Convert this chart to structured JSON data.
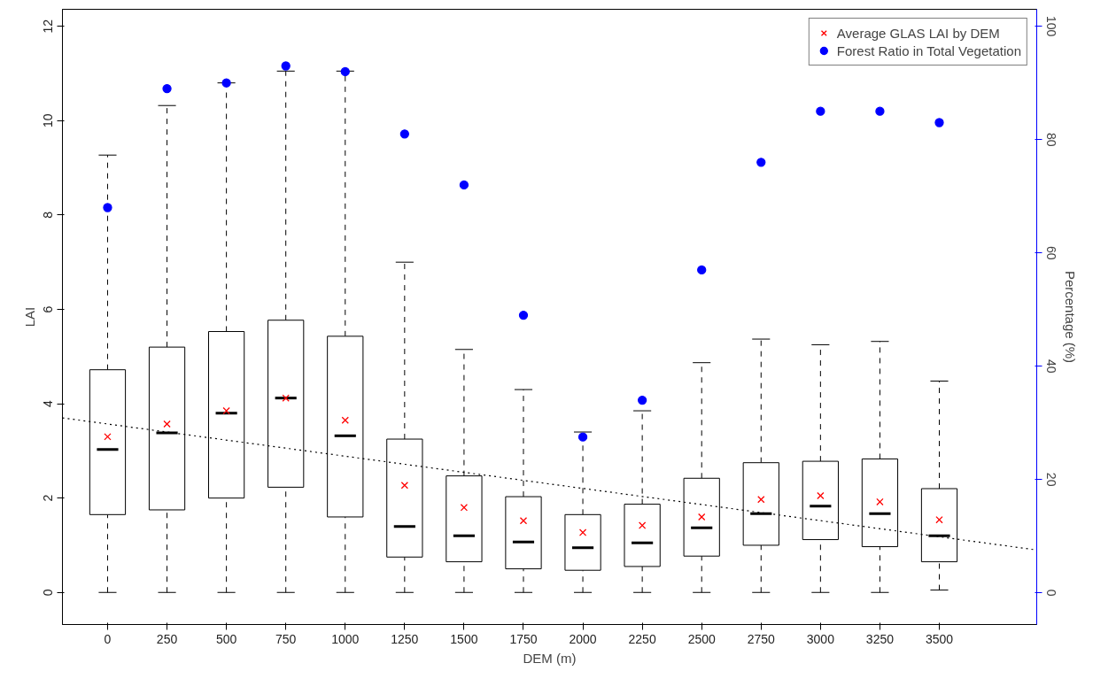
{
  "chart_data": {
    "type": "box",
    "xlabel": "DEM (m)",
    "ylabel": "LAI",
    "y2label": "Percentage (%)",
    "x": [
      0,
      250,
      500,
      750,
      1000,
      1250,
      1500,
      1750,
      2000,
      2250,
      2500,
      2750,
      3000,
      3250,
      3500
    ],
    "xlim": [
      -190,
      3910
    ],
    "xticks": [
      0,
      250,
      500,
      750,
      1000,
      1250,
      1500,
      1750,
      2000,
      2250,
      2500,
      2750,
      3000,
      3250,
      3500
    ],
    "ylim": [
      -0.68,
      12.36
    ],
    "yticks": [
      0,
      2,
      4,
      6,
      8,
      10,
      12
    ],
    "y2lim": [
      -5.6,
      103
    ],
    "y2ticks": [
      0,
      20,
      40,
      60,
      80,
      100
    ],
    "grid": false,
    "legend": "top right",
    "series": [
      {
        "color": "#000000",
        "line_style": "dashed",
        "boxes": [
          {
            "low": 0,
            "q1": 1.65,
            "median": 3.03,
            "q3": 4.72,
            "high": 9.27
          },
          {
            "low": 0,
            "q1": 1.75,
            "median": 3.38,
            "q3": 5.2,
            "high": 10.32
          },
          {
            "low": 0,
            "q1": 2.0,
            "median": 3.8,
            "q3": 5.53,
            "high": 10.8
          },
          {
            "low": 0,
            "q1": 2.23,
            "median": 4.12,
            "q3": 5.77,
            "high": 11.05
          },
          {
            "low": 0,
            "q1": 1.6,
            "median": 3.32,
            "q3": 5.43,
            "high": 11.05
          },
          {
            "low": 0,
            "q1": 0.75,
            "median": 1.4,
            "q3": 3.25,
            "high": 7.0
          },
          {
            "low": 0,
            "q1": 0.65,
            "median": 1.2,
            "q3": 2.47,
            "high": 5.15
          },
          {
            "low": 0,
            "q1": 0.5,
            "median": 1.07,
            "q3": 2.03,
            "high": 4.3
          },
          {
            "low": 0,
            "q1": 0.47,
            "median": 0.95,
            "q3": 1.65,
            "high": 3.4
          },
          {
            "low": 0,
            "q1": 0.55,
            "median": 1.05,
            "q3": 1.87,
            "high": 3.85
          },
          {
            "low": 0,
            "q1": 0.77,
            "median": 1.37,
            "q3": 2.42,
            "high": 4.87
          },
          {
            "low": 0,
            "q1": 1.0,
            "median": 1.67,
            "q3": 2.75,
            "high": 5.37
          },
          {
            "low": 0,
            "q1": 1.12,
            "median": 1.83,
            "q3": 2.78,
            "high": 5.25
          },
          {
            "low": 0,
            "q1": 0.97,
            "median": 1.67,
            "q3": 2.83,
            "high": 5.32
          },
          {
            "low": 0.05,
            "q1": 0.65,
            "median": 1.2,
            "q3": 2.2,
            "high": 4.48
          }
        ]
      },
      {
        "type": "scatter",
        "name": "Average GLAS LAI by DEM",
        "color": "#ff0000",
        "marker": "cross",
        "values": [
          3.3,
          3.57,
          3.85,
          4.12,
          3.65,
          2.27,
          1.8,
          1.52,
          1.27,
          1.42,
          1.6,
          1.97,
          2.05,
          1.92,
          1.54
        ]
      },
      {
        "type": "scatter",
        "name": "Forest Ratio in Total Vegetation",
        "color": "#0000ff",
        "marker": "circle",
        "axis": "y2",
        "values": [
          68,
          89,
          90,
          93,
          92,
          81,
          72,
          49,
          27.5,
          34,
          57,
          76,
          85,
          85,
          83
        ]
      },
      {
        "type": "line",
        "color": "#000000",
        "line_style": "dotted",
        "x": [
          -190,
          3910
        ],
        "values": [
          3.7,
          0.9
        ]
      }
    ]
  }
}
